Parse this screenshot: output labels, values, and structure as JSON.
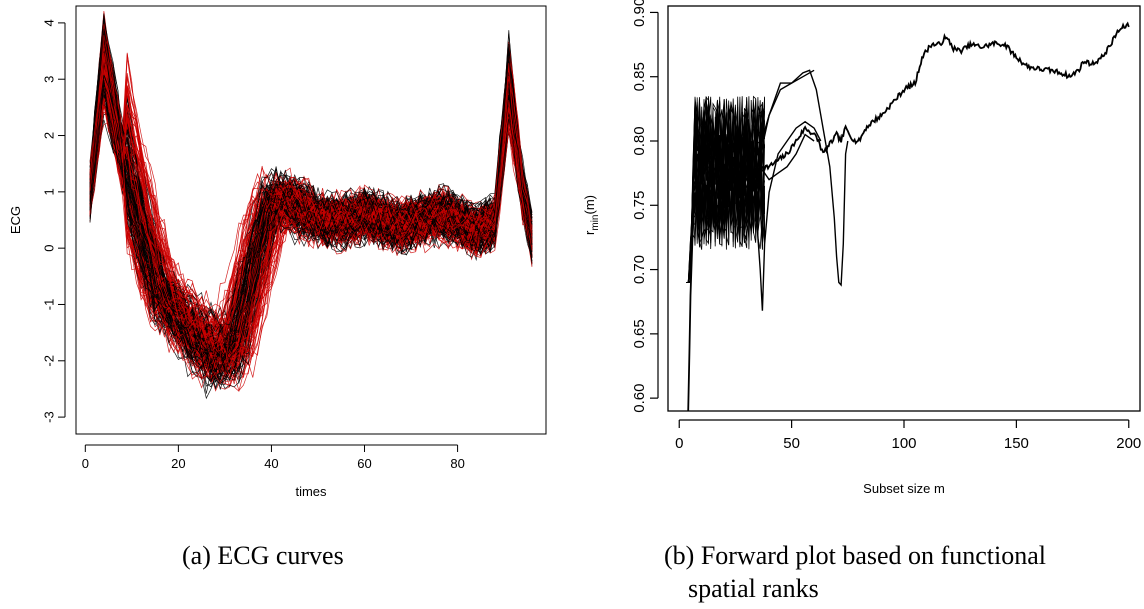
{
  "figure": {
    "caption_a": "(a) ECG curves",
    "caption_b_line1": "(b) Forward plot based on functional",
    "caption_b_line2": "spatial ranks"
  },
  "chart_data": [
    {
      "type": "line",
      "xlabel": "times",
      "ylabel": "ECG",
      "xlim": [
        -2,
        99
      ],
      "ylim": [
        -3.3,
        4.3
      ],
      "xticks": [
        0,
        20,
        40,
        60,
        80
      ],
      "yticks": [
        -3,
        -2,
        -1,
        0,
        1,
        2,
        3,
        4
      ],
      "series_colors": [
        "#000000",
        "#cc0000"
      ],
      "n_curves_estimate": 200,
      "x_range": [
        1,
        96
      ],
      "typical_curve": {
        "x": [
          1,
          4,
          8,
          12,
          16,
          20,
          24,
          28,
          32,
          36,
          40,
          44,
          48,
          52,
          56,
          60,
          64,
          68,
          72,
          76,
          80,
          84,
          88,
          91,
          94,
          96
        ],
        "y": [
          1.0,
          3.3,
          1.6,
          0.3,
          -0.8,
          -1.2,
          -1.6,
          -1.9,
          -1.7,
          -0.3,
          0.9,
          0.8,
          0.6,
          0.5,
          0.5,
          0.6,
          0.5,
          0.4,
          0.5,
          0.6,
          0.5,
          0.3,
          0.5,
          2.9,
          1.0,
          0.2
        ]
      }
    },
    {
      "type": "line",
      "xlabel": "Subset size m",
      "ylabel": "r",
      "ylabel_sub": "min",
      "ylabel_suffix": "(m)",
      "xlim": [
        -5,
        205
      ],
      "ylim": [
        0.59,
        0.905
      ],
      "xticks": [
        0,
        50,
        100,
        150,
        200
      ],
      "yticks": [
        0.6,
        0.65,
        0.7,
        0.75,
        0.8,
        0.85,
        0.9
      ],
      "main_series": {
        "x": [
          4,
          5,
          6,
          7,
          8,
          10,
          12,
          15,
          18,
          20,
          23,
          26,
          28,
          30,
          33,
          36,
          40,
          44,
          48,
          52,
          56,
          60,
          62,
          64,
          66,
          68,
          70,
          72,
          74,
          76,
          78,
          80,
          83,
          86,
          90,
          95,
          100,
          105,
          108,
          112,
          116,
          118,
          120,
          122,
          125,
          130,
          135,
          140,
          145,
          150,
          155,
          160,
          165,
          170,
          174,
          178,
          180,
          184,
          188,
          192,
          195,
          198,
          200
        ],
        "y": [
          0.59,
          0.68,
          0.73,
          0.76,
          0.75,
          0.77,
          0.76,
          0.78,
          0.77,
          0.78,
          0.77,
          0.78,
          0.76,
          0.78,
          0.77,
          0.78,
          0.78,
          0.785,
          0.79,
          0.8,
          0.81,
          0.805,
          0.8,
          0.79,
          0.795,
          0.8,
          0.805,
          0.8,
          0.81,
          0.805,
          0.8,
          0.8,
          0.81,
          0.815,
          0.82,
          0.83,
          0.84,
          0.845,
          0.865,
          0.875,
          0.875,
          0.88,
          0.878,
          0.872,
          0.87,
          0.875,
          0.873,
          0.876,
          0.875,
          0.865,
          0.858,
          0.856,
          0.855,
          0.853,
          0.85,
          0.856,
          0.862,
          0.86,
          0.865,
          0.875,
          0.885,
          0.889,
          0.89
        ]
      },
      "branch_series": [
        {
          "x": [
            30,
            35,
            40,
            45,
            50,
            55,
            58,
            61,
            63,
            65,
            67,
            69,
            70,
            71,
            72,
            73,
            74,
            75
          ],
          "y": [
            0.78,
            0.79,
            0.82,
            0.845,
            0.845,
            0.853,
            0.855,
            0.84,
            0.82,
            0.8,
            0.78,
            0.74,
            0.71,
            0.69,
            0.688,
            0.72,
            0.79,
            0.8
          ]
        },
        {
          "x": [
            25,
            30,
            34,
            36,
            37,
            38,
            40,
            44,
            48,
            52,
            56,
            60,
            63
          ],
          "y": [
            0.78,
            0.77,
            0.75,
            0.7,
            0.668,
            0.72,
            0.76,
            0.79,
            0.8,
            0.81,
            0.815,
            0.81,
            0.8
          ]
        },
        {
          "x": [
            28,
            32,
            36,
            40,
            44,
            48,
            52,
            56,
            60
          ],
          "y": [
            0.76,
            0.77,
            0.78,
            0.77,
            0.775,
            0.78,
            0.79,
            0.805,
            0.8
          ]
        },
        {
          "x": [
            35,
            40,
            45,
            50,
            55,
            60
          ],
          "y": [
            0.78,
            0.82,
            0.84,
            0.845,
            0.85,
            0.855
          ]
        }
      ],
      "noise_bundle": {
        "x_range": [
          3,
          38
        ],
        "y_range": [
          0.69,
          0.856
        ],
        "n_curves_estimate": 30
      }
    }
  ]
}
